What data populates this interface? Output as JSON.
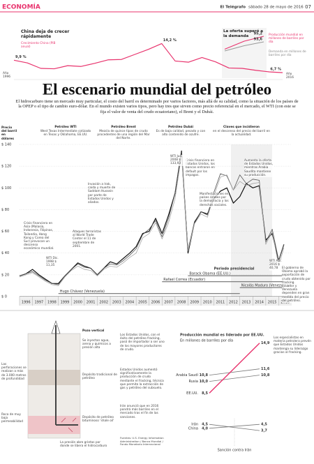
{
  "header": {
    "section": "ECONOMÍA",
    "newspaper": "El Telégrafo",
    "date": "sábado 28 de mayo de 2016",
    "page": "07"
  },
  "title": "El escenario mundial del petróleo",
  "intro": "El hidrocarburo tiene un mercado muy particular, el costo del barril es determinado por varios factores, más allá de su calidad, como la situación de los países de la OPEP o el tipo de cambio euro-dólar. En el mundo existen varios tipos, pero hay tres que sirven como precio referencial en el mercado, el WTI (con este se fija el valor de venta del crudo ecuatoriano), el Brent y el Dubái.",
  "chart_data": [
    {
      "type": "line",
      "title": "China deja de crecer rápidamente",
      "start_label": "Año 1996",
      "end_label": "Año 2016",
      "x": [
        1996,
        1997,
        1998,
        1999,
        2000,
        2001,
        2002,
        2003,
        2004,
        2005,
        2006,
        2007,
        2008,
        2009,
        2010,
        2011,
        2012,
        2013,
        2014,
        2015,
        2016
      ],
      "xlim": [
        1996,
        2016
      ],
      "ylim": [
        6,
        15
      ],
      "series": [
        {
          "name": "Crecimiento China (PIB anual)",
          "color": "#e8336d",
          "values": [
            9.9,
            9.2,
            7.8,
            7.7,
            8.5,
            8.3,
            9.1,
            10.0,
            10.1,
            11.4,
            12.7,
            14.2,
            9.7,
            9.4,
            10.6,
            9.5,
            7.9,
            7.8,
            7.3,
            6.9,
            6.7
          ],
          "value_labels": [
            "9,9 %",
            null,
            null,
            null,
            null,
            null,
            null,
            null,
            null,
            null,
            null,
            "14,2 %",
            null,
            null,
            null,
            null,
            null,
            null,
            null,
            null,
            "6,7 %"
          ]
        }
      ]
    },
    {
      "type": "line",
      "title": "La oferta superó a la demanda",
      "categories": [
        null,
        null,
        null
      ],
      "ylim": [
        90,
        96
      ],
      "series": [
        {
          "name": "Producción mundial en millones de barriles por día",
          "color": "#e8336d",
          "values": [
            91.5,
            93.8,
            95.2
          ],
          "value_labels": [
            null,
            null,
            "95,2"
          ]
        },
        {
          "name": "Demanda en millones de barriles por día",
          "color": "#999999",
          "values": [
            91.0,
            92.5,
            93.6
          ],
          "value_labels": [
            null,
            null,
            "93,6"
          ]
        }
      ]
    },
    {
      "type": "line",
      "y_label": "Precio del barril en dólares",
      "keys_title": "Claves que incidieron",
      "keys_subtitle": "en el descenso del precio del barril en la actualidad.",
      "x": [
        1996,
        1996.5,
        1997,
        1997.5,
        1998,
        1998.5,
        1999,
        1999.5,
        2000,
        2000.5,
        2001,
        2001.5,
        2002,
        2002.5,
        2003,
        2003.5,
        2004,
        2004.5,
        2005,
        2005.5,
        2006,
        2006.5,
        2007,
        2007.5,
        2008,
        2008.5,
        2009,
        2009.5,
        2010,
        2010.5,
        2011,
        2011.5,
        2012,
        2012.5,
        2013,
        2013.5,
        2014,
        2014.5,
        2015,
        2015.5,
        2016,
        2016.4
      ],
      "xlim": [
        1996,
        2017
      ],
      "ylim": [
        0,
        140
      ],
      "xticks": [
        1996,
        1997,
        1998,
        1999,
        2000,
        2001,
        2002,
        2003,
        2004,
        2005,
        2006,
        2007,
        2008,
        2009,
        2010,
        2011,
        2012,
        2013,
        2014,
        2015,
        2016
      ],
      "yticks": [
        {
          "value": 0,
          "label": "$ 0"
        },
        {
          "value": 20,
          "label": "$ 20"
        },
        {
          "value": 40,
          "label": "$ 40"
        },
        {
          "value": 60,
          "label": "$ 60"
        },
        {
          "value": 80,
          "label": "$ 80"
        },
        {
          "value": 100,
          "label": "$ 100"
        },
        {
          "value": 120,
          "label": "$ 120"
        },
        {
          "value": 140,
          "label": "$ 140"
        }
      ],
      "grid": true,
      "series": [
        {
          "name": "Petróleo WTI",
          "description": "West Texas Intermediate cotizado en Texas y Oklahoma, EE.UU.",
          "color": "#111111",
          "values": [
            19,
            21,
            25,
            20,
            16,
            12,
            12,
            19,
            25,
            31,
            28,
            26,
            20,
            26,
            32,
            30,
            35,
            40,
            46,
            58,
            60,
            72,
            58,
            75,
            95,
            134,
            40,
            68,
            78,
            76,
            90,
            97,
            100,
            86,
            92,
            104,
            100,
            102,
            52,
            58,
            33,
            48
          ]
        },
        {
          "name": "Petróleo Brent",
          "description": "Mezcla de quince tipos de crudo procedentes de una región del Mar del Norte.",
          "color": "#555555",
          "values": [
            19,
            21,
            23,
            19,
            15,
            12,
            11,
            19,
            25,
            30,
            27,
            26,
            20,
            26,
            30,
            29,
            33,
            38,
            44,
            57,
            62,
            70,
            55,
            72,
            95,
            133,
            43,
            69,
            78,
            75,
            96,
            113,
            111,
            98,
            112,
            104,
            108,
            107,
            50,
            62,
            33,
            48
          ]
        },
        {
          "name": "Petróleo Dubái",
          "description": "Es de baja calidad, pesado y con alto contenido de azufre.",
          "color": "#a8a8a8",
          "values": [
            18,
            20,
            22,
            18,
            14,
            11,
            10,
            18,
            24,
            28,
            25,
            24,
            19,
            25,
            28,
            27,
            31,
            36,
            40,
            54,
            58,
            68,
            53,
            68,
            90,
            130,
            42,
            67,
            76,
            73,
            93,
            110,
            112,
            98,
            106,
            102,
            104,
            105,
            48,
            60,
            28,
            45
          ]
        }
      ],
      "annotations": [
        "Crisis financiera en Asia (Malasia, Indonesia, Filipinas, Tailandia, Hong Kong y Corea del Sur) provocan un descenso económico mundial.",
        "Ataques terroristas al World Trade Center el 11 de septiembre de 2001.",
        "Invasión a Irak, caída y muerte de Saddam Hussein por parte de Estados Unidos y aliados.",
        "Crisis financiera en Estados Unidos, los bancos entraron en default por los impagos.",
        "Manifestaciones en países árabes por la democracia y los derechos sociales.",
        "Aumenta la oferta de Estados Unidos, mientras Arabia Saudita mantiene su producción.",
        "WTI Dic. 1998 $ 11,35",
        "WTI Jun. 2008 $ 133,93",
        "WTI Abr. 2016 $ 40,78",
        "El gobierno de Obama aprobó la exportación de crudo obtenido por fracking.",
        "Ecuador y Venezuela dependen en gran medida del precio del petróleo."
      ],
      "periods_label": "Periodo presidencial",
      "periods": [
        {
          "name": "Barack Obama (EE.UU.)",
          "start": 2009,
          "end": 2016.4
        },
        {
          "name": "Rafael Correa (Ecuador)",
          "start": 2007,
          "end": 2016.4
        },
        {
          "name": "Nicolás Maduro (Venezuela)",
          "start": 2013,
          "end": 2016.4
        },
        {
          "name": "Hugo Chávez (Venezuela)",
          "start": 1999,
          "end": 2013
        }
      ]
    },
    {
      "type": "line",
      "title": "Producción mundial es liderado por EE.UU.",
      "subtitle": "En millones de barriles por día",
      "annotation": "Sanción contra Irán",
      "categories": [
        null,
        null
      ],
      "ylim": [
        3,
        15.5
      ],
      "series": [
        {
          "name": "Arabia Saudí",
          "color": "#777777",
          "values": [
            10.8,
            11.6
          ],
          "value_labels": [
            "10,8",
            "11,6"
          ]
        },
        {
          "name": "Rusia",
          "color": "#777777",
          "values": [
            10.0,
            10.8
          ],
          "value_labels": [
            "10,0",
            "10,8"
          ]
        },
        {
          "name": "EE.UU.",
          "color": "#e8336d",
          "values": [
            8.5,
            14.9
          ],
          "value_labels": [
            "8,5",
            "14,9"
          ]
        },
        {
          "name": "China",
          "color": "#777777",
          "values": [
            4.0,
            4.5
          ],
          "value_labels": [
            "4,0",
            "4,5"
          ]
        },
        {
          "name": "Irán",
          "color": "#777777",
          "values": [
            4.5,
            3.7
          ],
          "value_labels": [
            "4,5",
            "3,7"
          ]
        }
      ]
    }
  ],
  "fracking": {
    "labels": [
      "Pozo vertical",
      "Se inyectan agua, arena y químicos a presión alta",
      "Las perforaciones se realizan a más de 3.000 metros de profundidad",
      "Depósito tradicional de petróleo",
      "Roca de muy baja permeabilidad",
      "Depósito de petróleo bituminoso 'shale oil'",
      "La presión abre grietas por donde se libera el hidrocarburo"
    ]
  },
  "notes": [
    "Los Estados Unidos, con el éxito del petróleo fracking, pasó de importador a ser uno de los mayores productores de crudo.",
    "Estados Unidos aumentó significativamente la producción de crudo mediante el fracking, técnica que permite la extracción de gas y petróleo del subsuelo.",
    "Irán anunció que en 2016 pondrá más barriles en el mercado tras el fin de las sanciones.",
    "Los especialistas en materia petrolera prevén que Estados Unidos mantenga su liderazgo gracias al fracking."
  ],
  "sources": "Fuentes: U.S. Energy Information Administration / Banco Mundial / Fondo Monetario Internacional"
}
